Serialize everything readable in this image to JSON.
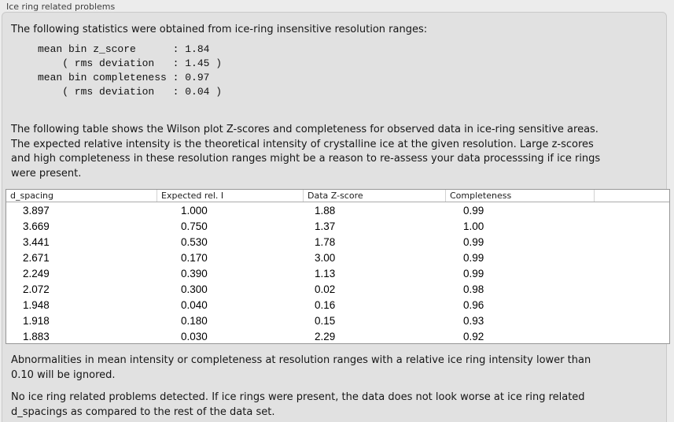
{
  "panel": {
    "title": "Ice ring related problems",
    "intro": "The following statistics were obtained from ice-ring insensitive resolution ranges:",
    "stats_block": "mean bin z_score      : 1.84\n    ( rms deviation   : 1.45 )\nmean bin completeness : 0.97\n    ( rms deviation   : 0.04 )",
    "stats": {
      "mean_bin_z_score": "1.84",
      "z_score_rms_deviation": "1.45",
      "mean_bin_completeness": "0.97",
      "completeness_rms_deviation": "0.04"
    },
    "table_description": "The following table shows the Wilson plot Z-scores and completeness for observed data in ice-ring sensitive areas.\nThe expected relative intensity is the theoretical intensity of crystalline ice at the given resolution. Large z-scores\nand high completeness in these resolution ranges might be a reason to re-assess your data processsing if ice rings\nwere present.",
    "note_ignore": "Abnormalities in mean intensity or completeness at resolution ranges with a relative ice ring intensity lower than\n0.10 will be ignored.",
    "conclusion": "No ice ring related problems detected. If ice rings were present, the data does not look worse at ice ring related\nd_spacings as compared to the rest of the data set."
  },
  "table": {
    "columns": [
      "d_spacing",
      "Expected rel. I",
      "Data Z-score",
      "Completeness"
    ],
    "rows": [
      {
        "d_spacing": "3.897",
        "expected_rel_i": "1.000",
        "data_z_score": "1.88",
        "completeness": "0.99"
      },
      {
        "d_spacing": "3.669",
        "expected_rel_i": "0.750",
        "data_z_score": "1.37",
        "completeness": "1.00"
      },
      {
        "d_spacing": "3.441",
        "expected_rel_i": "0.530",
        "data_z_score": "1.78",
        "completeness": "0.99"
      },
      {
        "d_spacing": "2.671",
        "expected_rel_i": "0.170",
        "data_z_score": "3.00",
        "completeness": "0.99"
      },
      {
        "d_spacing": "2.249",
        "expected_rel_i": "0.390",
        "data_z_score": "1.13",
        "completeness": "0.99"
      },
      {
        "d_spacing": "2.072",
        "expected_rel_i": "0.300",
        "data_z_score": "0.02",
        "completeness": "0.98"
      },
      {
        "d_spacing": "1.948",
        "expected_rel_i": "0.040",
        "data_z_score": "0.16",
        "completeness": "0.96"
      },
      {
        "d_spacing": "1.918",
        "expected_rel_i": "0.180",
        "data_z_score": "0.15",
        "completeness": "0.93"
      },
      {
        "d_spacing": "1.883",
        "expected_rel_i": "0.030",
        "data_z_score": "2.29",
        "completeness": "0.92"
      }
    ]
  },
  "colors": {
    "outer_background": "#ececec",
    "groupbox_background": "#e1e1e1",
    "groupbox_border": "#c9c9c9",
    "table_background": "#ffffff",
    "table_border": "#979797",
    "text": "#151515"
  }
}
